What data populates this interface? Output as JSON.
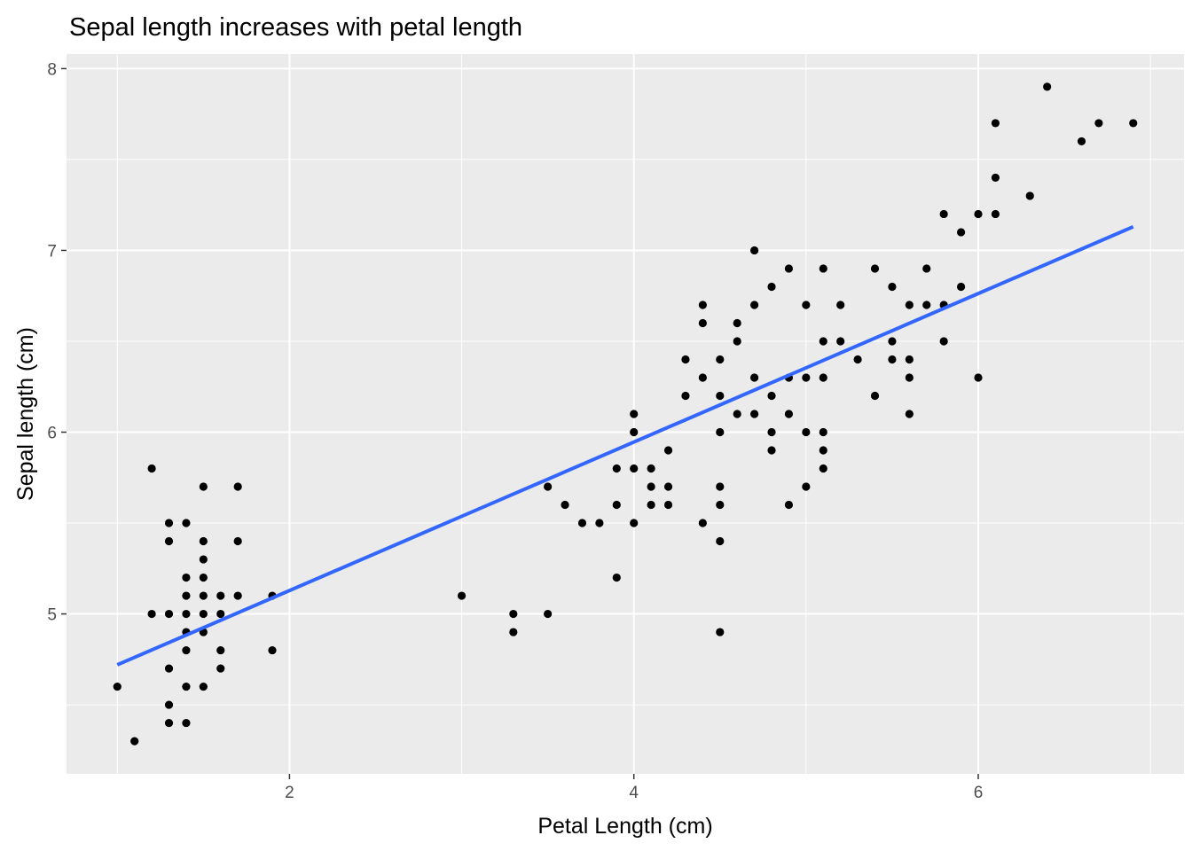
{
  "chart_data": {
    "type": "scatter",
    "title": "Sepal length increases with petal length",
    "xlabel": "Petal Length (cm)",
    "ylabel": "Sepal length (cm)",
    "xlim": [
      0.705,
      7.195
    ],
    "ylim": [
      4.12,
      8.08
    ],
    "x_ticks": [
      2,
      4,
      6
    ],
    "y_ticks": [
      5,
      6,
      7,
      8
    ],
    "grid": true,
    "legend": "none",
    "colors": {
      "panel": "#ebebeb",
      "grid": "#ffffff",
      "points": "#000000",
      "trend_line": "#3366ff",
      "tick_label": "#4d4d4d",
      "tick_mark": "#333333"
    },
    "points": [
      [
        1.0,
        4.6
      ],
      [
        1.1,
        4.3
      ],
      [
        1.2,
        5.8
      ],
      [
        1.2,
        5.0
      ],
      [
        1.3,
        5.5
      ],
      [
        1.3,
        5.4
      ],
      [
        1.3,
        5.0
      ],
      [
        1.3,
        4.7
      ],
      [
        1.3,
        4.5
      ],
      [
        1.3,
        4.4
      ],
      [
        1.4,
        5.5
      ],
      [
        1.4,
        5.2
      ],
      [
        1.4,
        5.1
      ],
      [
        1.4,
        5.0
      ],
      [
        1.4,
        4.9
      ],
      [
        1.4,
        4.8
      ],
      [
        1.4,
        4.6
      ],
      [
        1.4,
        4.4
      ],
      [
        1.5,
        5.7
      ],
      [
        1.5,
        5.4
      ],
      [
        1.5,
        5.3
      ],
      [
        1.5,
        5.2
      ],
      [
        1.5,
        5.1
      ],
      [
        1.5,
        5.0
      ],
      [
        1.5,
        4.9
      ],
      [
        1.5,
        4.6
      ],
      [
        1.6,
        5.1
      ],
      [
        1.6,
        5.0
      ],
      [
        1.6,
        4.8
      ],
      [
        1.6,
        4.7
      ],
      [
        1.7,
        5.7
      ],
      [
        1.7,
        5.4
      ],
      [
        1.7,
        5.1
      ],
      [
        1.9,
        5.1
      ],
      [
        1.9,
        4.8
      ],
      [
        3.0,
        5.1
      ],
      [
        3.3,
        5.0
      ],
      [
        3.3,
        4.9
      ],
      [
        3.5,
        5.7
      ],
      [
        3.5,
        5.0
      ],
      [
        3.6,
        5.6
      ],
      [
        3.7,
        5.5
      ],
      [
        3.8,
        5.5
      ],
      [
        3.9,
        5.8
      ],
      [
        3.9,
        5.6
      ],
      [
        3.9,
        5.2
      ],
      [
        4.0,
        6.1
      ],
      [
        4.0,
        6.0
      ],
      [
        4.0,
        5.8
      ],
      [
        4.0,
        5.5
      ],
      [
        4.1,
        5.8
      ],
      [
        4.1,
        5.7
      ],
      [
        4.1,
        5.6
      ],
      [
        4.2,
        5.9
      ],
      [
        4.2,
        5.7
      ],
      [
        4.2,
        5.6
      ],
      [
        4.3,
        6.4
      ],
      [
        4.3,
        6.2
      ],
      [
        4.4,
        6.7
      ],
      [
        4.4,
        6.6
      ],
      [
        4.4,
        6.3
      ],
      [
        4.4,
        5.5
      ],
      [
        4.5,
        6.4
      ],
      [
        4.5,
        6.2
      ],
      [
        4.5,
        6.0
      ],
      [
        4.5,
        5.7
      ],
      [
        4.5,
        5.6
      ],
      [
        4.5,
        5.4
      ],
      [
        4.5,
        4.9
      ],
      [
        4.6,
        6.6
      ],
      [
        4.6,
        6.5
      ],
      [
        4.6,
        6.1
      ],
      [
        4.7,
        7.0
      ],
      [
        4.7,
        6.7
      ],
      [
        4.7,
        6.3
      ],
      [
        4.7,
        6.1
      ],
      [
        4.8,
        6.8
      ],
      [
        4.8,
        6.2
      ],
      [
        4.8,
        6.0
      ],
      [
        4.8,
        5.9
      ],
      [
        4.9,
        6.9
      ],
      [
        4.9,
        6.3
      ],
      [
        4.9,
        6.1
      ],
      [
        4.9,
        5.6
      ],
      [
        5.0,
        6.7
      ],
      [
        5.0,
        6.3
      ],
      [
        5.0,
        6.0
      ],
      [
        5.0,
        5.7
      ],
      [
        5.1,
        6.9
      ],
      [
        5.1,
        6.5
      ],
      [
        5.1,
        6.3
      ],
      [
        5.1,
        6.0
      ],
      [
        5.1,
        5.9
      ],
      [
        5.1,
        5.8
      ],
      [
        5.2,
        6.7
      ],
      [
        5.2,
        6.5
      ],
      [
        5.3,
        6.4
      ],
      [
        5.4,
        6.9
      ],
      [
        5.4,
        6.2
      ],
      [
        5.5,
        6.8
      ],
      [
        5.5,
        6.5
      ],
      [
        5.5,
        6.4
      ],
      [
        5.6,
        6.7
      ],
      [
        5.6,
        6.4
      ],
      [
        5.6,
        6.3
      ],
      [
        5.6,
        6.1
      ],
      [
        5.7,
        6.9
      ],
      [
        5.7,
        6.7
      ],
      [
        5.8,
        7.2
      ],
      [
        5.8,
        6.7
      ],
      [
        5.8,
        6.5
      ],
      [
        5.9,
        7.1
      ],
      [
        5.9,
        6.8
      ],
      [
        6.0,
        7.2
      ],
      [
        6.0,
        6.3
      ],
      [
        6.1,
        7.7
      ],
      [
        6.1,
        7.4
      ],
      [
        6.1,
        7.2
      ],
      [
        6.3,
        7.3
      ],
      [
        6.4,
        7.9
      ],
      [
        6.6,
        7.6
      ],
      [
        6.7,
        7.7
      ],
      [
        6.9,
        7.7
      ]
    ],
    "trend_line": {
      "method": "linear fit",
      "x": [
        1.0,
        6.9
      ],
      "y": [
        4.72,
        7.13
      ]
    }
  }
}
